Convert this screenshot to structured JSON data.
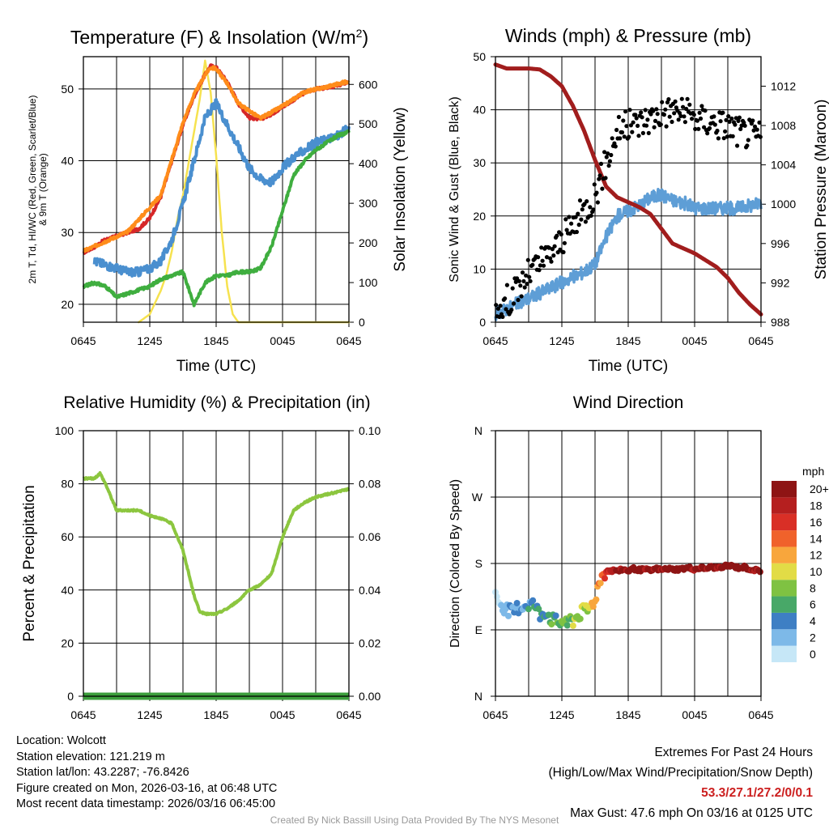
{
  "chart_data": [
    {
      "type": "line",
      "title": "Temperature (F) & Insolation (W/m2)",
      "xlabel": "Time (UTC)",
      "ylabel_html": "2m T, T<tspan baseline-shift='sub' font-size='8'>d</tspan>, HI/WC (Red, Green, Scarlet/Blue) & 9m T (Orange)",
      "ylabel_line1": "2m T, Td, HI/WC (Red, Green, Scarlet/Blue)",
      "ylabel_line2": "& 9m T (Orange)",
      "y2label": "Solar Insolation (Yellow)",
      "x_ticks": [
        "0645",
        "1245",
        "1845",
        "0045",
        "0645"
      ],
      "ylim": [
        17.5,
        54.5
      ],
      "y_ticks": [
        20,
        30,
        40,
        50
      ],
      "y2lim": [
        0,
        670
      ],
      "y2_ticks": [
        0,
        100,
        200,
        300,
        400,
        500,
        600
      ],
      "series": [
        {
          "name": "2m Temperature",
          "color": "#d62728",
          "x": [
            0,
            1,
            2,
            3,
            4,
            5,
            6,
            7,
            8,
            9,
            10,
            11,
            11.5,
            12,
            12.5,
            13,
            13.5,
            14,
            15,
            16,
            17,
            18,
            19,
            20,
            21,
            22,
            23,
            24
          ],
          "values": [
            27.2,
            28,
            29,
            29.5,
            30,
            30.5,
            32,
            35,
            40,
            45,
            49,
            52,
            53.2,
            53,
            52,
            51,
            49.5,
            48,
            46,
            45.8,
            46.5,
            47.5,
            48.5,
            49.5,
            50,
            50.2,
            50.5,
            51
          ]
        },
        {
          "name": "9m Temperature",
          "color": "#ff8c1a",
          "x": [
            0,
            4,
            7,
            8,
            9,
            10,
            11,
            11.5,
            12,
            12.5,
            13,
            14,
            16,
            18,
            20,
            22,
            24
          ],
          "values": [
            27.4,
            30.1,
            35.2,
            40.2,
            45.3,
            49.2,
            52,
            53,
            52.8,
            51.8,
            50.8,
            48,
            45.9,
            47.6,
            49.6,
            50.3,
            51.1
          ]
        },
        {
          "name": "Heat Index / Wind Chill",
          "color": "#4a8fcf",
          "x": [
            1,
            2,
            3,
            4,
            5,
            6,
            7,
            8,
            9,
            10,
            10.5,
            11,
            12,
            13,
            14,
            15,
            16,
            17,
            18,
            19,
            20,
            21,
            22,
            23,
            24
          ],
          "values": [
            26,
            25.5,
            25,
            24.5,
            24.5,
            25,
            26,
            29,
            34,
            40,
            43,
            46,
            48,
            45,
            42,
            39,
            37.5,
            37,
            39,
            40.5,
            41.5,
            42.5,
            43,
            43.5,
            44.5
          ]
        },
        {
          "name": "Dew Point",
          "color": "#3fae3f",
          "x": [
            0,
            1,
            2,
            3,
            4,
            5,
            6,
            7,
            8,
            9,
            10,
            11,
            12,
            13,
            14,
            15,
            16,
            17,
            18,
            19,
            20,
            21,
            22,
            23,
            24
          ],
          "values": [
            22.5,
            23,
            22.5,
            21,
            21.5,
            22,
            22.5,
            23.5,
            24,
            24.5,
            20,
            23,
            24,
            24,
            24.5,
            24.5,
            25,
            28,
            33,
            38,
            40,
            41.5,
            42.5,
            43.5,
            44
          ]
        }
      ],
      "insolation": {
        "name": "Solar Insolation",
        "color": "#f6e24f",
        "x": [
          5,
          6,
          7,
          7.5,
          8,
          8.5,
          9,
          9.5,
          10,
          10.5,
          11,
          11.5,
          12,
          12.5,
          13,
          13.5,
          14,
          15,
          24
        ],
        "values": [
          0,
          20,
          80,
          120,
          180,
          260,
          320,
          400,
          480,
          560,
          660,
          580,
          420,
          230,
          90,
          20,
          0,
          0,
          0
        ]
      }
    },
    {
      "type": "line",
      "title": "Winds (mph) & Pressure (mb)",
      "xlabel": "Time (UTC)",
      "ylabel": "Sonic Wind & Gust (Blue, Black)",
      "y2label": "Station Pressure (Maroon)",
      "x_ticks": [
        "0645",
        "1245",
        "1845",
        "0045",
        "0645"
      ],
      "ylim": [
        0,
        50
      ],
      "y_ticks": [
        0,
        10,
        20,
        30,
        40,
        50
      ],
      "y2lim": [
        988,
        1015
      ],
      "y2_ticks": [
        988,
        992,
        996,
        1000,
        1004,
        1008,
        1012
      ],
      "series": [
        {
          "name": "Sonic Wind",
          "color": "#5e9ed6",
          "x": [
            0,
            1,
            2,
            3,
            4,
            5,
            6,
            7,
            8,
            9,
            10,
            11,
            12,
            13,
            14,
            15,
            16,
            17,
            18,
            19,
            20,
            21,
            22,
            23,
            24
          ],
          "values": [
            1.5,
            2.5,
            3.5,
            4.5,
            5.5,
            6.5,
            7.5,
            8.5,
            9.5,
            11,
            16,
            20,
            21,
            22,
            23.5,
            24,
            23,
            22.5,
            21.5,
            21.5,
            21.5,
            21.5,
            21.5,
            22,
            22.5
          ]
        },
        {
          "name": "Station Pressure",
          "color": "#a11d1d",
          "x": [
            0,
            1,
            2,
            3,
            4,
            5,
            6,
            7,
            8,
            9,
            10,
            11,
            12,
            13,
            14,
            15,
            16,
            17,
            18,
            19,
            20,
            21,
            22,
            23,
            24
          ],
          "values": [
            1014.2,
            1013.8,
            1013.8,
            1013.8,
            1013.7,
            1013,
            1012,
            1010,
            1007.5,
            1004.5,
            1001.8,
            1000.7,
            1000.2,
            999.7,
            999,
            997.5,
            996,
            995.5,
            995,
            994.3,
            993.6,
            992.5,
            991,
            989.8,
            988.8
          ]
        }
      ],
      "gust": {
        "name": "Gust",
        "color": "#000000",
        "x": [
          0,
          1,
          2,
          3,
          4,
          5,
          6,
          7,
          8,
          9,
          10,
          11,
          12,
          13,
          14,
          15,
          16,
          17,
          18,
          19,
          20,
          21,
          22,
          23,
          24
        ],
        "values": [
          2,
          4,
          6,
          9,
          11,
          13,
          15.5,
          18,
          21,
          24,
          30,
          36,
          37,
          37.5,
          38.5,
          39.5,
          40,
          39.5,
          38.5,
          38,
          37.5,
          37,
          36,
          35.5,
          35
        ]
      }
    },
    {
      "type": "line",
      "title": "Relative Humidity (%) & Precipitation (in)",
      "xlabel": "",
      "ylabel": "Percent & Precipitation",
      "x_ticks": [
        "0645",
        "1245",
        "1845",
        "0045",
        "0645"
      ],
      "ylim": [
        0,
        100
      ],
      "y_ticks": [
        0,
        20,
        40,
        60,
        80,
        100
      ],
      "y2lim": [
        0,
        0.1
      ],
      "y2_ticks": [
        "0.00",
        "0.02",
        "0.04",
        "0.06",
        "0.08",
        "0.10"
      ],
      "series": [
        {
          "name": "Relative Humidity",
          "color": "#8cc63f",
          "x": [
            0,
            1,
            1.5,
            2,
            3,
            4,
            5,
            6,
            7,
            8,
            9,
            10,
            10.5,
            11,
            12,
            13,
            14,
            15,
            16,
            17,
            18,
            19,
            20,
            21,
            22,
            23,
            24
          ],
          "values": [
            82,
            82,
            84,
            80,
            70,
            70,
            70,
            68,
            67,
            65,
            55,
            38,
            32,
            31,
            31,
            33,
            36,
            40,
            42,
            46,
            60,
            70,
            73,
            75,
            76,
            77,
            78
          ]
        },
        {
          "name": "Precipitation",
          "color": "#3c9e3c",
          "x": [
            0,
            24
          ],
          "values": [
            0,
            0
          ]
        }
      ]
    },
    {
      "type": "scatter",
      "title": "Wind Direction",
      "xlabel": "",
      "ylabel": "Direction (Colored By Speed)",
      "x_ticks": [
        "0645",
        "1245",
        "1845",
        "0045",
        "0645"
      ],
      "y_ticks": [
        "N",
        "E",
        "S",
        "W",
        "N"
      ],
      "ylim": [
        0,
        360
      ],
      "colorbar_title": "mph",
      "colorbar_labels": [
        "0",
        "2",
        "4",
        "6",
        "8",
        "10",
        "12",
        "14",
        "16",
        "18",
        "20+"
      ],
      "colorbar_colors": [
        "#c6e7f7",
        "#7db9e8",
        "#3e7fc4",
        "#48a868",
        "#7fc242",
        "#e2dc46",
        "#f8a63c",
        "#f0622b",
        "#d92f26",
        "#b51f1f",
        "#8e1414"
      ],
      "x": [
        0,
        0.5,
        1,
        1.5,
        2,
        2.5,
        3,
        3.5,
        4,
        4.5,
        5,
        5.5,
        6,
        6.5,
        7,
        7.5,
        8,
        8.5,
        9,
        9.5,
        10,
        10.5,
        11,
        11.5,
        12,
        12.5,
        13,
        13.5,
        14,
        14.5,
        15,
        15.5,
        16,
        16.5,
        17,
        17.5,
        18,
        18.5,
        19,
        19.5,
        20,
        20.5,
        21,
        21.5,
        22,
        22.5,
        23,
        23.5,
        24
      ],
      "direction_deg": [
        135,
        125,
        118,
        112,
        120,
        122,
        125,
        124,
        110,
        116,
        105,
        100,
        100,
        105,
        102,
        110,
        115,
        118,
        132,
        160,
        170,
        170,
        171,
        172,
        170,
        173,
        171,
        172,
        170,
        173,
        171,
        173,
        172,
        172,
        173,
        174,
        172,
        174,
        173,
        175,
        174,
        176,
        177,
        176,
        174,
        175,
        172,
        171,
        168
      ],
      "speed_mph": [
        1,
        1,
        2,
        2,
        3,
        3,
        4,
        4,
        5,
        5,
        6,
        6,
        7,
        7,
        8,
        8,
        9,
        10,
        12,
        14,
        17,
        18,
        20,
        20,
        20,
        20,
        20,
        20,
        20,
        20,
        20,
        20,
        20,
        20,
        20,
        20,
        20,
        20,
        20,
        20,
        20,
        20,
        20,
        20,
        20,
        20,
        20,
        20,
        20
      ]
    }
  ],
  "info": {
    "location": "Location: Wolcott",
    "elevation": "Station elevation: 121.219 m",
    "latlon": "Station lat/lon: 43.2287; -76.8426",
    "created": "Figure created on Mon, 2026-03-16, at 06:48 UTC",
    "recent": "Most recent data timestamp: 2026/03/16 06:45:00"
  },
  "extremes": {
    "title": "Extremes For Past 24 Hours",
    "subtitle": "(High/Low/Max Wind/Precipitation/Snow Depth)",
    "values": "53.3/27.1/27.2/0/0.1",
    "max_gust": "Max Gust: 47.6 mph On 03/16 at 0125 UTC"
  },
  "credit": "Created By Nick Bassill Using Data Provided By The NYS Mesonet"
}
